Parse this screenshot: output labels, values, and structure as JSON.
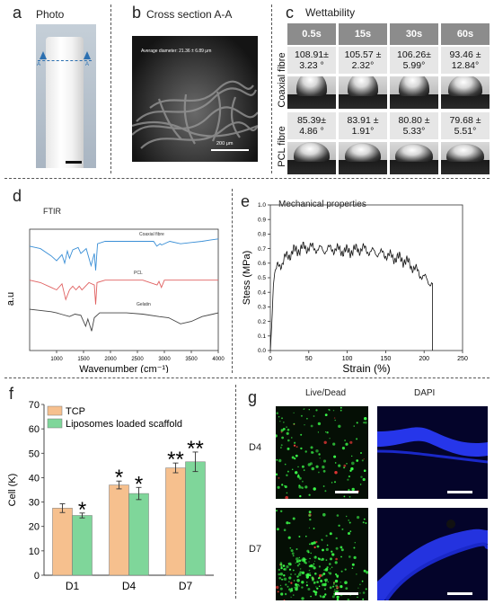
{
  "panels": {
    "a": {
      "letter": "a",
      "title": "Photo",
      "marker_label": "A",
      "marker_label_2": "A"
    },
    "b": {
      "letter": "b",
      "title": "Cross section A-A",
      "sem_text": "Average diameter: 21.36 ± 6.89 μm",
      "scale_text": "200 μm"
    },
    "c": {
      "letter": "c",
      "title": "Wettability",
      "times": [
        "0.5s",
        "15s",
        "30s",
        "60s"
      ],
      "rows": [
        {
          "label": "Coaxial fibre",
          "values": [
            "108.91±\n3.23 °",
            "105.57 ±\n2.32°",
            "106.26±\n5.99°",
            "93.46 ±\n12.84°"
          ]
        },
        {
          "label": "PCL fibre",
          "values": [
            "85.39±\n4.86 °",
            "83.91 ±\n1.91°",
            "80.80 ±\n5.33°",
            "79.68 ±\n5.51°"
          ]
        }
      ]
    },
    "d": {
      "letter": "d",
      "title": "FTIR"
    },
    "e": {
      "letter": "e",
      "title": "Mechanical properties"
    },
    "f": {
      "letter": "f"
    },
    "g": {
      "letter": "g",
      "col_labels": [
        "Live/Dead",
        "DAPI"
      ],
      "row_labels": [
        "D4",
        "D7"
      ]
    }
  },
  "chart_data": [
    {
      "type": "line",
      "panel": "d",
      "title": "FTIR",
      "xlabel": "Wavenumber (cm⁻¹)",
      "ylabel": "a.u",
      "xlim": [
        500,
        4000
      ],
      "xticks": [
        1000,
        1500,
        2000,
        2500,
        3000,
        3500,
        4000
      ],
      "series": [
        {
          "name": "Coaxial fibre",
          "color": "#3a8fd6",
          "x": [
            500,
            700,
            900,
            1000,
            1100,
            1150,
            1200,
            1240,
            1300,
            1400,
            1450,
            1550,
            1640,
            1700,
            1725,
            1760,
            1900,
            2100,
            2400,
            2800,
            2860,
            2920,
            2950,
            3100,
            3300,
            3500,
            3700,
            3850,
            4000
          ],
          "y": [
            0.86,
            0.84,
            0.78,
            0.74,
            0.79,
            0.72,
            0.82,
            0.76,
            0.83,
            0.85,
            0.8,
            0.84,
            0.7,
            0.8,
            0.66,
            0.88,
            0.9,
            0.9,
            0.9,
            0.9,
            0.86,
            0.88,
            0.87,
            0.9,
            0.88,
            0.89,
            0.9,
            0.91,
            0.92
          ]
        },
        {
          "name": "PCL",
          "color": "#e06060",
          "x": [
            500,
            700,
            900,
            1000,
            1100,
            1170,
            1240,
            1300,
            1360,
            1420,
            1470,
            1600,
            1700,
            1725,
            1750,
            1900,
            2200,
            2600,
            2865,
            2900,
            2945,
            3000,
            3300,
            3600,
            4000
          ],
          "y": [
            0.58,
            0.56,
            0.52,
            0.5,
            0.55,
            0.42,
            0.5,
            0.53,
            0.5,
            0.53,
            0.5,
            0.56,
            0.54,
            0.38,
            0.56,
            0.58,
            0.58,
            0.58,
            0.54,
            0.57,
            0.52,
            0.58,
            0.58,
            0.58,
            0.58
          ]
        },
        {
          "name": "Gelatin",
          "color": "#444444",
          "x": [
            500,
            700,
            900,
            1000,
            1080,
            1240,
            1340,
            1450,
            1540,
            1580,
            1650,
            1700,
            1800,
            2000,
            2300,
            2600,
            2900,
            3080,
            3300,
            3500,
            3700,
            3900,
            4000
          ],
          "y": [
            0.34,
            0.33,
            0.32,
            0.31,
            0.3,
            0.28,
            0.3,
            0.29,
            0.2,
            0.26,
            0.16,
            0.27,
            0.31,
            0.31,
            0.31,
            0.3,
            0.28,
            0.27,
            0.22,
            0.24,
            0.28,
            0.3,
            0.31
          ]
        }
      ],
      "annotations": [
        "Coaxial fibre",
        "PCL",
        "Gelatin"
      ]
    },
    {
      "type": "line",
      "panel": "e",
      "title": "Mechanical properties",
      "xlabel": "Strain (%)",
      "ylabel": "Stess (MPa)",
      "xlim": [
        0,
        250
      ],
      "ylim": [
        0,
        1.0
      ],
      "xticks": [
        0,
        50,
        100,
        150,
        200,
        250
      ],
      "yticks": [
        0.0,
        0.1,
        0.2,
        0.3,
        0.4,
        0.5,
        0.6,
        0.7,
        0.8,
        0.9,
        1.0
      ],
      "series": [
        {
          "name": "",
          "color": "#111111",
          "x": [
            0,
            2,
            4,
            6,
            10,
            15,
            20,
            30,
            40,
            50,
            60,
            70,
            80,
            90,
            100,
            110,
            120,
            130,
            140,
            150,
            160,
            170,
            180,
            190,
            200,
            205,
            210,
            211
          ],
          "y": [
            0.0,
            0.2,
            0.45,
            0.55,
            0.58,
            0.6,
            0.64,
            0.68,
            0.7,
            0.71,
            0.7,
            0.69,
            0.7,
            0.69,
            0.68,
            0.69,
            0.7,
            0.68,
            0.67,
            0.66,
            0.64,
            0.63,
            0.6,
            0.55,
            0.5,
            0.48,
            0.46,
            0.0
          ]
        }
      ]
    },
    {
      "type": "bar",
      "panel": "f",
      "xlabel": "",
      "ylabel": "Cell (K)",
      "ylim": [
        0,
        70
      ],
      "yticks": [
        0,
        10,
        20,
        30,
        40,
        50,
        60,
        70
      ],
      "categories": [
        "D1",
        "D4",
        "D7"
      ],
      "series": [
        {
          "name": "TCP",
          "color": "#f6c08e",
          "values": [
            27.5,
            37,
            44
          ],
          "errors": [
            1.8,
            1.6,
            2.0
          ]
        },
        {
          "name": "Liposomes loaded scaffold",
          "color": "#7fd69a",
          "values": [
            24.5,
            33.5,
            46.5
          ],
          "errors": [
            1.0,
            2.5,
            4.0
          ]
        }
      ],
      "significance": [
        {
          "category": "D1",
          "series": 1,
          "mark": "*"
        },
        {
          "category": "D4",
          "series": 0,
          "mark": "*"
        },
        {
          "category": "D4",
          "series": 1,
          "mark": "*"
        },
        {
          "category": "D7",
          "series": 0,
          "mark": "**"
        },
        {
          "category": "D7",
          "series": 1,
          "mark": "**"
        }
      ],
      "legend": "top-left"
    }
  ]
}
